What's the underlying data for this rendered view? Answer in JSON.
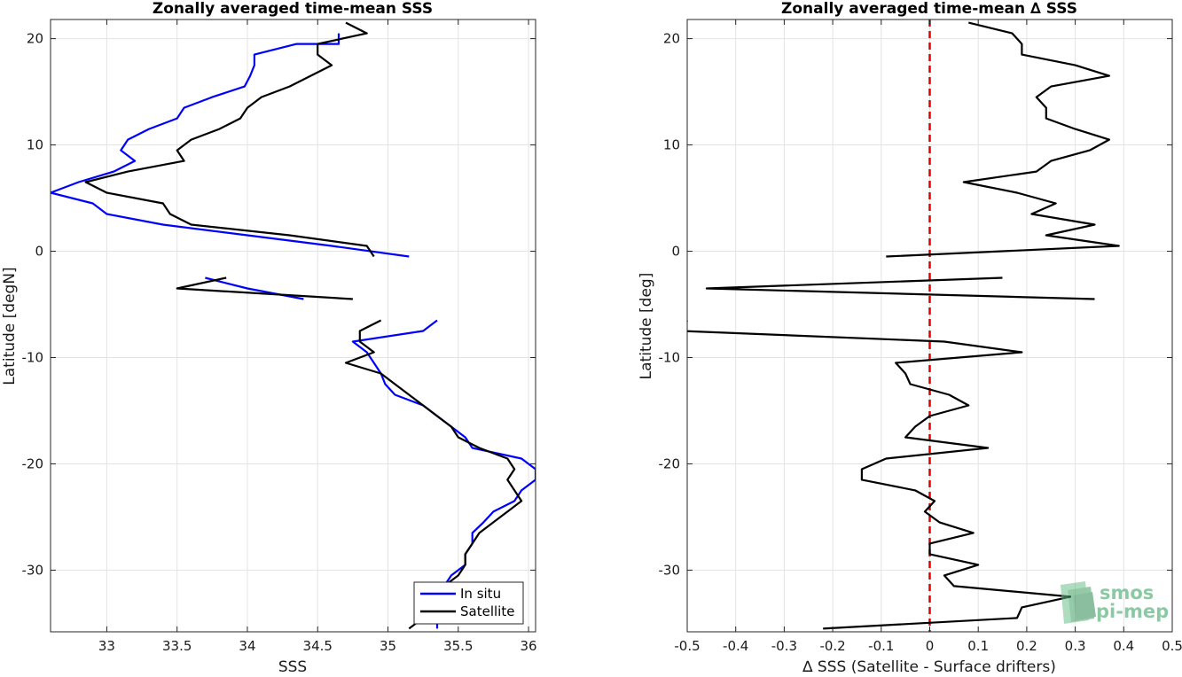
{
  "logo": {
    "line1": "smos",
    "line2": "pi-mep"
  },
  "chart_data": [
    {
      "type": "line",
      "title": "Zonally averaged time-mean SSS",
      "xlabel": "SSS",
      "ylabel": "Latitude [degN]",
      "xlim": [
        32.6,
        36.05
      ],
      "ylim": [
        -35.8,
        21.8
      ],
      "xticks": [
        "33",
        "33.5",
        "34",
        "34.5",
        "35",
        "35.5",
        "36"
      ],
      "yticks": [
        "20",
        "10",
        "0",
        "-10",
        "-20",
        "-30"
      ],
      "grid": true,
      "legend": {
        "position": "bottom-right",
        "entries": [
          "In situ",
          "Satellite"
        ]
      },
      "series": [
        {
          "name": "In situ",
          "color": "#0000ff",
          "segments": [
            [
              [
                34.65,
                20.5
              ],
              [
                34.65,
                19.5
              ],
              [
                34.35,
                19.5
              ],
              [
                34.05,
                18.5
              ],
              [
                34.05,
                17.5
              ],
              [
                34.02,
                16.5
              ],
              [
                33.98,
                15.5
              ],
              [
                33.75,
                14.5
              ],
              [
                33.55,
                13.5
              ],
              [
                33.5,
                12.5
              ],
              [
                33.3,
                11.5
              ],
              [
                33.15,
                10.5
              ],
              [
                33.1,
                9.5
              ],
              [
                33.2,
                8.5
              ],
              [
                33.05,
                7.5
              ],
              [
                32.8,
                6.5
              ],
              [
                32.6,
                5.5
              ],
              [
                32.9,
                4.5
              ],
              [
                33.0,
                3.5
              ],
              [
                33.4,
                2.5
              ],
              [
                34.0,
                1.5
              ],
              [
                34.6,
                0.5
              ],
              [
                35.15,
                -0.5
              ]
            ],
            [
              [
                33.7,
                -2.5
              ],
              [
                34.0,
                -3.5
              ],
              [
                34.4,
                -4.5
              ]
            ],
            [
              [
                35.35,
                -6.5
              ],
              [
                35.25,
                -7.5
              ],
              [
                34.75,
                -8.5
              ],
              [
                34.85,
                -9.5
              ],
              [
                34.9,
                -10.5
              ],
              [
                34.95,
                -11.5
              ],
              [
                34.98,
                -12.5
              ],
              [
                35.05,
                -13.5
              ],
              [
                35.25,
                -14.5
              ],
              [
                35.35,
                -15.5
              ],
              [
                35.45,
                -16.5
              ],
              [
                35.55,
                -17.5
              ],
              [
                35.6,
                -18.5
              ],
              [
                35.95,
                -19.5
              ],
              [
                36.05,
                -20.5
              ],
              [
                36.05,
                -21.5
              ],
              [
                35.95,
                -22.5
              ],
              [
                35.9,
                -23.5
              ],
              [
                35.75,
                -24.5
              ],
              [
                35.68,
                -25.5
              ],
              [
                35.6,
                -26.5
              ],
              [
                35.6,
                -27.5
              ],
              [
                35.55,
                -28.5
              ],
              [
                35.55,
                -29.5
              ],
              [
                35.45,
                -30.5
              ],
              [
                35.4,
                -31.5
              ],
              [
                35.35,
                -32.5
              ],
              [
                35.35,
                -33.5
              ],
              [
                35.35,
                -34.5
              ],
              [
                35.35,
                -35.5
              ]
            ]
          ]
        },
        {
          "name": "Satellite",
          "color": "#000000",
          "segments": [
            [
              [
                34.7,
                21.5
              ],
              [
                34.85,
                20.5
              ],
              [
                34.5,
                19.5
              ],
              [
                34.5,
                18.5
              ],
              [
                34.6,
                17.5
              ],
              [
                34.45,
                16.5
              ],
              [
                34.3,
                15.5
              ],
              [
                34.1,
                14.5
              ],
              [
                34.0,
                13.5
              ],
              [
                33.95,
                12.5
              ],
              [
                33.8,
                11.5
              ],
              [
                33.6,
                10.5
              ],
              [
                33.5,
                9.5
              ],
              [
                33.55,
                8.5
              ],
              [
                33.15,
                7.5
              ],
              [
                32.85,
                6.5
              ],
              [
                33.0,
                5.5
              ],
              [
                33.4,
                4.5
              ],
              [
                33.45,
                3.5
              ],
              [
                33.6,
                2.5
              ],
              [
                34.3,
                1.5
              ],
              [
                34.85,
                0.5
              ],
              [
                34.9,
                -0.5
              ]
            ],
            [
              [
                33.85,
                -2.5
              ],
              [
                33.5,
                -3.5
              ],
              [
                34.75,
                -4.5
              ]
            ],
            [
              [
                34.95,
                -6.5
              ],
              [
                34.8,
                -7.5
              ],
              [
                34.8,
                -8.5
              ],
              [
                34.9,
                -9.5
              ],
              [
                34.7,
                -10.5
              ],
              [
                34.95,
                -11.5
              ],
              [
                35.05,
                -12.5
              ],
              [
                35.15,
                -13.5
              ],
              [
                35.25,
                -14.5
              ],
              [
                35.35,
                -15.5
              ],
              [
                35.45,
                -16.5
              ],
              [
                35.5,
                -17.5
              ],
              [
                35.65,
                -18.5
              ],
              [
                35.85,
                -19.5
              ],
              [
                35.9,
                -20.5
              ],
              [
                35.85,
                -21.5
              ],
              [
                35.9,
                -22.5
              ],
              [
                35.95,
                -23.5
              ],
              [
                35.85,
                -24.5
              ],
              [
                35.75,
                -25.5
              ],
              [
                35.65,
                -26.5
              ],
              [
                35.6,
                -27.5
              ],
              [
                35.55,
                -28.5
              ],
              [
                35.55,
                -29.5
              ],
              [
                35.5,
                -30.5
              ],
              [
                35.4,
                -31.5
              ],
              [
                35.35,
                -32.5
              ],
              [
                35.3,
                -33.5
              ],
              [
                35.25,
                -34.5
              ],
              [
                35.15,
                -35.5
              ]
            ]
          ]
        }
      ]
    },
    {
      "type": "line",
      "title": "Zonally averaged time-mean ∆ SSS",
      "xlabel": "∆ SSS (Satellite - Surface drifters)",
      "ylabel": "Latitude [deg]",
      "xlim": [
        -0.5,
        0.5
      ],
      "ylim": [
        -35.8,
        21.8
      ],
      "xticks": [
        "-0.5",
        "-0.4",
        "-0.3",
        "-0.2",
        "-0.1",
        "0",
        "0.1",
        "0.2",
        "0.3",
        "0.4",
        "0.5"
      ],
      "yticks": [
        "20",
        "10",
        "0",
        "-10",
        "-20",
        "-30"
      ],
      "grid": true,
      "reference_line": {
        "x": 0,
        "color": "#e00000",
        "style": "dashed"
      },
      "series": [
        {
          "color": "#000000",
          "segments": [
            [
              [
                0.08,
                21.5
              ],
              [
                0.17,
                20.5
              ],
              [
                0.19,
                19.5
              ],
              [
                0.19,
                18.5
              ],
              [
                0.3,
                17.5
              ],
              [
                0.37,
                16.5
              ],
              [
                0.25,
                15.5
              ],
              [
                0.22,
                14.5
              ],
              [
                0.24,
                13.5
              ],
              [
                0.24,
                12.5
              ],
              [
                0.3,
                11.5
              ],
              [
                0.37,
                10.5
              ],
              [
                0.33,
                9.5
              ],
              [
                0.25,
                8.5
              ],
              [
                0.22,
                7.5
              ],
              [
                0.07,
                6.5
              ],
              [
                0.18,
                5.5
              ],
              [
                0.26,
                4.5
              ],
              [
                0.21,
                3.5
              ],
              [
                0.34,
                2.5
              ],
              [
                0.24,
                1.5
              ],
              [
                0.39,
                0.5
              ],
              [
                -0.09,
                -0.5
              ]
            ],
            [
              [
                0.15,
                -2.5
              ],
              [
                -0.46,
                -3.5
              ],
              [
                0.34,
                -4.5
              ]
            ],
            [
              [
                -0.5,
                -6.5
              ],
              [
                -0.51,
                -7.5
              ],
              [
                0.03,
                -8.5
              ],
              [
                0.19,
                -9.5
              ],
              [
                -0.07,
                -10.5
              ],
              [
                -0.05,
                -11.5
              ],
              [
                -0.04,
                -12.5
              ],
              [
                0.04,
                -13.5
              ],
              [
                0.08,
                -14.5
              ],
              [
                0.0,
                -15.5
              ],
              [
                -0.03,
                -16.5
              ],
              [
                -0.05,
                -17.5
              ],
              [
                0.12,
                -18.5
              ],
              [
                -0.09,
                -19.5
              ],
              [
                -0.14,
                -20.5
              ],
              [
                -0.14,
                -21.5
              ],
              [
                -0.03,
                -22.5
              ],
              [
                0.01,
                -23.5
              ],
              [
                -0.01,
                -24.5
              ],
              [
                0.02,
                -25.5
              ],
              [
                0.09,
                -26.5
              ],
              [
                0.0,
                -27.5
              ],
              [
                0.0,
                -28.5
              ],
              [
                0.1,
                -29.5
              ],
              [
                0.03,
                -30.5
              ],
              [
                0.05,
                -31.5
              ],
              [
                0.29,
                -32.5
              ],
              [
                0.19,
                -33.5
              ],
              [
                0.18,
                -34.5
              ],
              [
                -0.22,
                -35.5
              ]
            ]
          ]
        }
      ]
    }
  ]
}
